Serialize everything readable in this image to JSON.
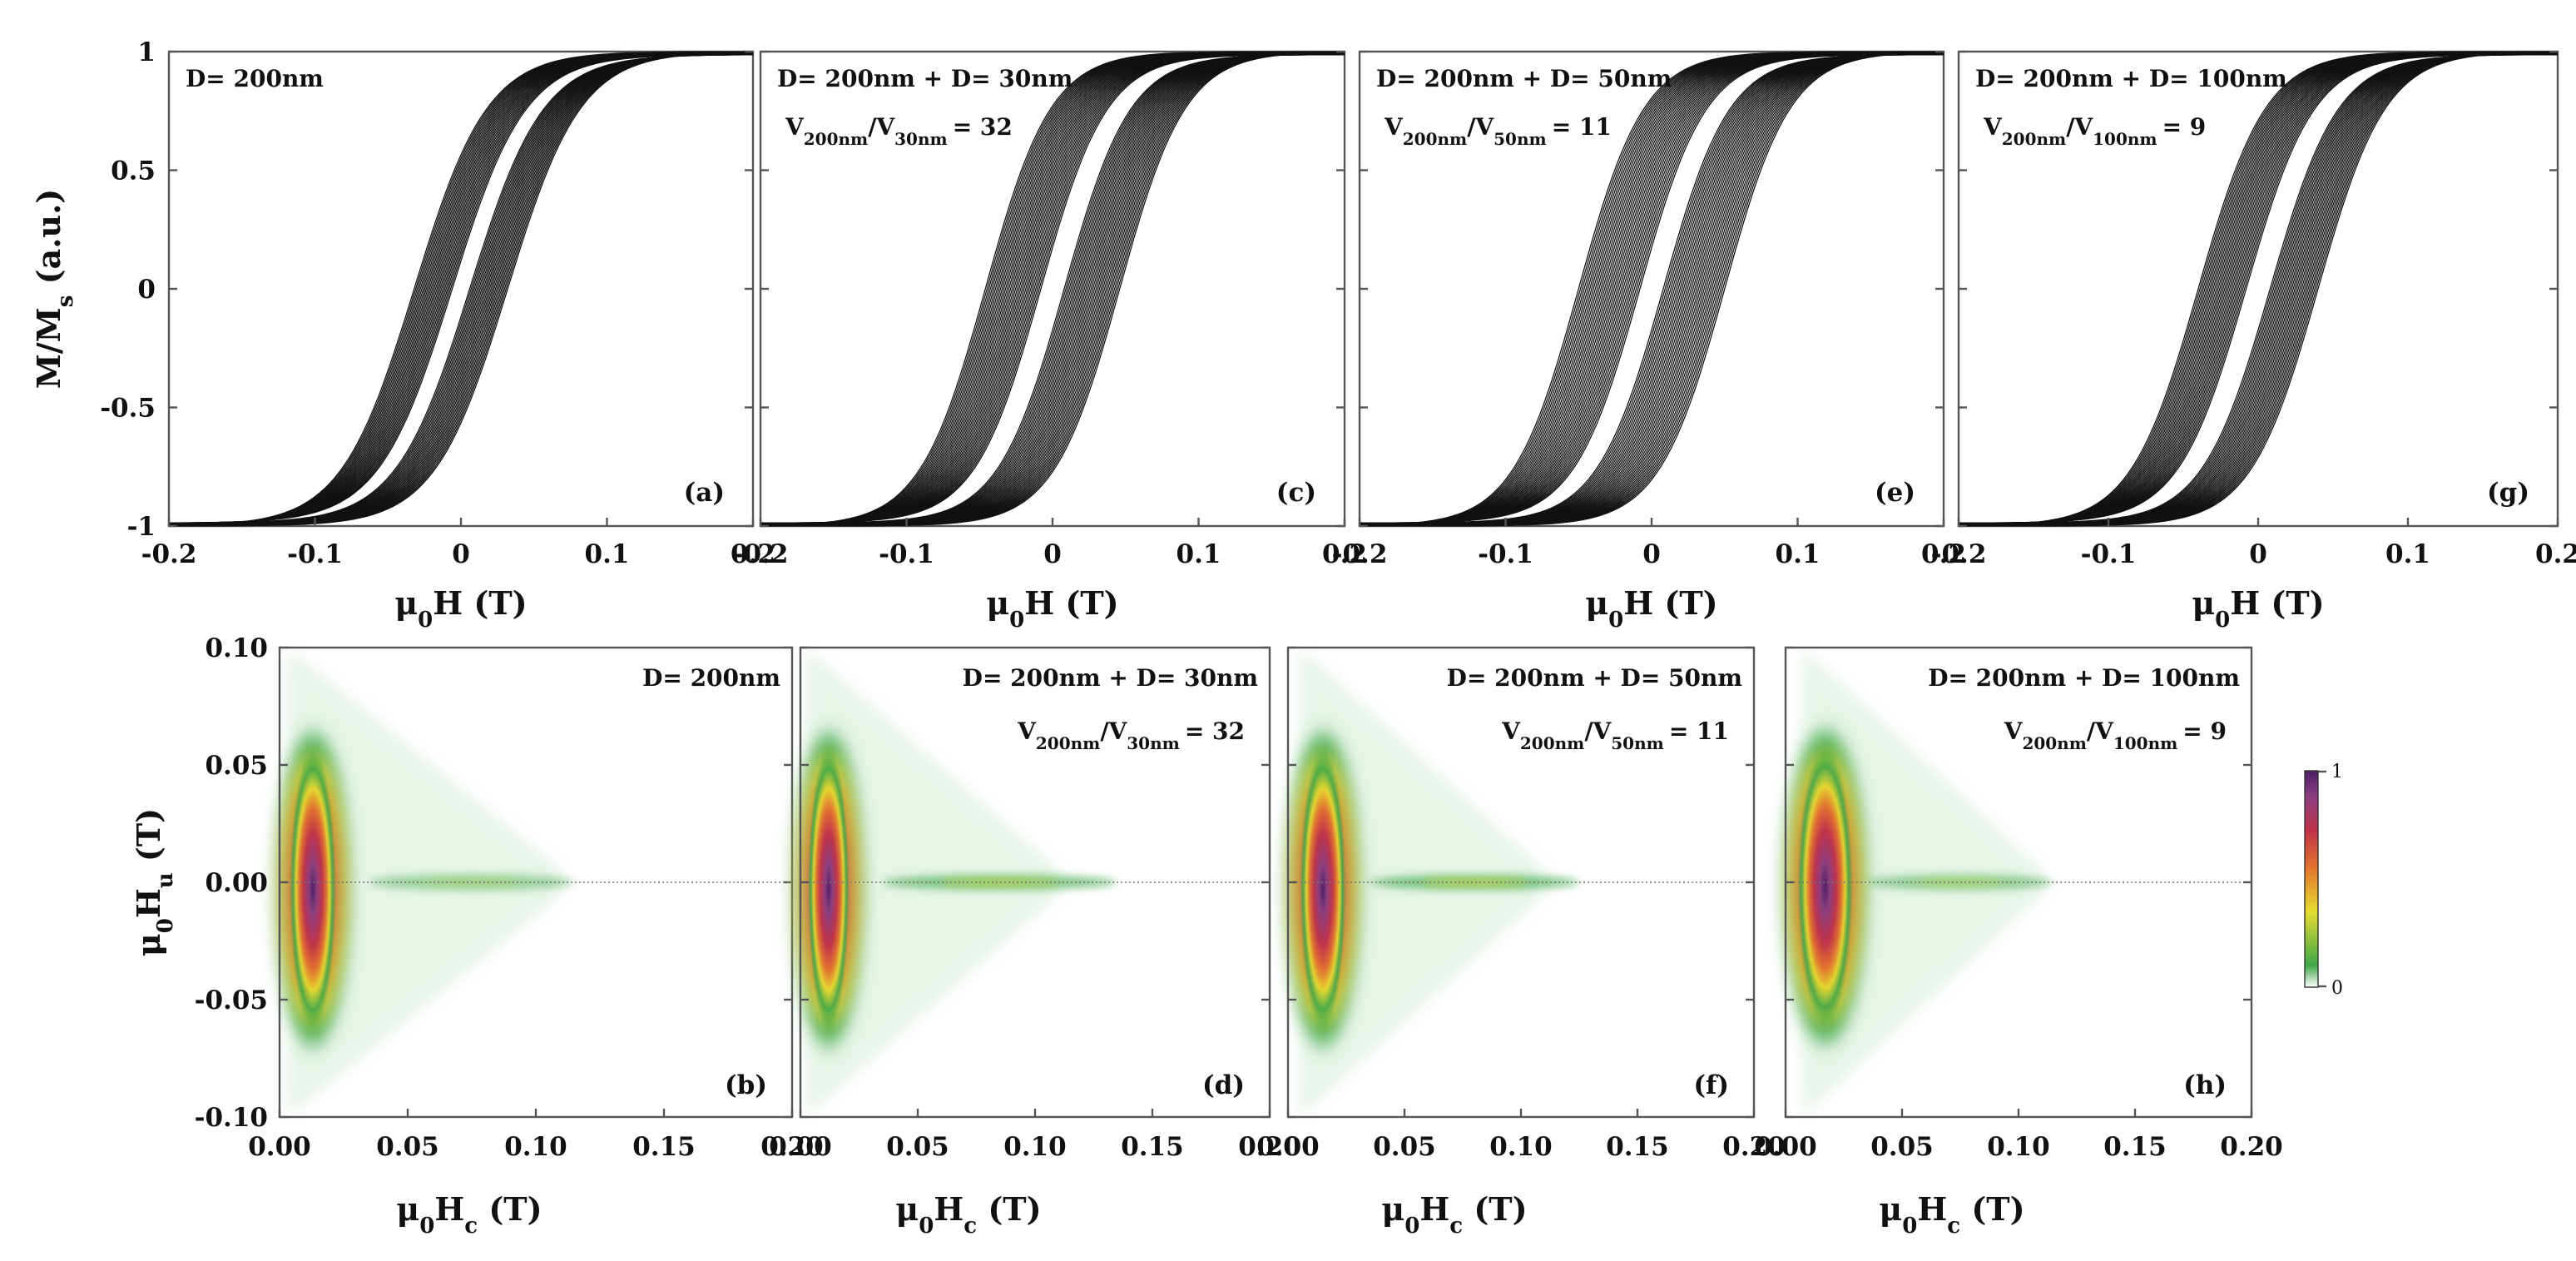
{
  "colors": {
    "heat_low": "#41a84a",
    "heat_mid_low": "#e5dc30",
    "heat_mid": "#e2752f",
    "heat_mid_high": "#c0334a",
    "heat_high": "#8c3f7f",
    "heat_max": "#4a1f64",
    "line": "#111111"
  },
  "chart_data": [
    {
      "type": "line",
      "panel": "(a)",
      "label_main": "D= 200nm",
      "ratio_text": null,
      "xlim": [
        -0.2,
        0.2
      ],
      "ylim": [
        -1,
        1
      ],
      "xticks": [
        "-0.2",
        "-0.1",
        "0",
        "0.1",
        "0.2"
      ],
      "yticks": [
        "1",
        "0.5",
        "0",
        "-0.5",
        "-1"
      ],
      "xlabel": {
        "sym": "μ",
        "sub": "0",
        "rest": "H (T)"
      },
      "ylabel": {
        "pre": "M/M",
        "sub": "s",
        "rest": " (a.u.)"
      },
      "curve_family": {
        "n": 26,
        "hc_min": 0.006,
        "hc_max": 0.032,
        "slope": 0.05
      }
    },
    {
      "type": "line",
      "panel": "(c)",
      "label_main": "D= 200nm + D= 30nm",
      "ratio_text": {
        "a": "V",
        "a_sub": "200nm",
        "b": "/V",
        "b_sub": "30nm",
        "c": "= 32"
      },
      "xlim": [
        -0.2,
        0.2
      ],
      "ylim": [
        -1,
        1
      ],
      "xticks": [
        "-0.2",
        "-0.1",
        "0",
        "0.1",
        "0.2"
      ],
      "yticks": [],
      "xlabel": {
        "sym": "μ",
        "sub": "0",
        "rest": "H (T)"
      },
      "curve_family": {
        "n": 34,
        "hc_min": 0.008,
        "hc_max": 0.046,
        "slope": 0.045
      }
    },
    {
      "type": "line",
      "panel": "(e)",
      "label_main": "D= 200nm + D= 50nm",
      "ratio_text": {
        "a": "V",
        "a_sub": "200nm",
        "b": "/V",
        "b_sub": "50nm",
        "c": "= 11"
      },
      "xlim": [
        -0.2,
        0.2
      ],
      "ylim": [
        -1,
        1
      ],
      "xticks": [
        "-0.2",
        "-0.1",
        "0",
        "0.1",
        "0.2"
      ],
      "yticks": [],
      "xlabel": {
        "sym": "μ",
        "sub": "0",
        "rest": "H (T)"
      },
      "curve_family": {
        "n": 34,
        "hc_min": 0.008,
        "hc_max": 0.05,
        "slope": 0.045
      }
    },
    {
      "type": "line",
      "panel": "(g)",
      "label_main": "D= 200nm + D= 100nm",
      "ratio_text": {
        "a": "V",
        "a_sub": "200nm",
        "b": "/V",
        "b_sub": "100nm",
        "c": "= 9"
      },
      "xlim": [
        -0.2,
        0.2
      ],
      "ylim": [
        -1,
        1
      ],
      "xticks": [
        "-0.2",
        "-0.1",
        "0",
        "0.1",
        "0.2"
      ],
      "yticks": [],
      "xlabel": {
        "sym": "μ",
        "sub": "0",
        "rest": "H (T)"
      },
      "curve_family": {
        "n": 30,
        "hc_min": 0.008,
        "hc_max": 0.04,
        "slope": 0.045
      }
    },
    {
      "type": "heatmap",
      "panel": "(b)",
      "label_main": "D= 200nm",
      "ratio_text": null,
      "xlim": [
        0,
        0.2
      ],
      "ylim": [
        -0.1,
        0.1
      ],
      "xticks": [
        "0.00",
        "0.05",
        "0.10",
        "0.15",
        "0.20"
      ],
      "yticks": [
        "0.10",
        "0.05",
        "0.00",
        "-0.05",
        "-0.10"
      ],
      "xlabel": {
        "sym": "μ",
        "sub": "0",
        "rest": "H",
        "sub2": "c",
        "rest2": " (T)"
      },
      "ylabel": {
        "sym": "μ",
        "sub": "0",
        "rest": "H",
        "sub2": "u",
        "rest2": " (T)"
      },
      "main_peak": {
        "hc": 0.013,
        "hu": -0.003,
        "hc_width": 0.011,
        "hu_height": 0.066
      },
      "tail": {
        "hc_start": 0.035,
        "hc_end": 0.115,
        "intensity": 0.28
      }
    },
    {
      "type": "heatmap",
      "panel": "(d)",
      "label_main": "D= 200nm + D= 30nm",
      "ratio_text": {
        "a": "V",
        "a_sub": "200nm",
        "b": "/V",
        "b_sub": "30nm",
        "c": "= 32"
      },
      "xlim": [
        0,
        0.2
      ],
      "ylim": [
        -0.1,
        0.1
      ],
      "xticks": [
        "0.00",
        "0.05",
        "0.10",
        "0.15",
        "0.20"
      ],
      "yticks": [],
      "xlabel": {
        "sym": "μ",
        "sub": "0",
        "rest": "H",
        "sub2": "c",
        "rest2": " (T)"
      },
      "main_peak": {
        "hc": 0.012,
        "hu": -0.003,
        "hc_width": 0.011,
        "hu_height": 0.066
      },
      "tail": {
        "hc_start": 0.035,
        "hc_end": 0.135,
        "intensity": 0.55
      }
    },
    {
      "type": "heatmap",
      "panel": "(f)",
      "label_main": "D= 200nm + D= 50nm",
      "ratio_text": {
        "a": "V",
        "a_sub": "200nm",
        "b": "/V",
        "b_sub": "50nm",
        "c": "= 11"
      },
      "xlim": [
        0,
        0.2
      ],
      "ylim": [
        -0.1,
        0.1
      ],
      "xticks": [
        "0.00",
        "0.05",
        "0.10",
        "0.15",
        "0.20"
      ],
      "yticks": [],
      "xlabel": {
        "sym": "μ",
        "sub": "0",
        "rest": "H",
        "sub2": "c",
        "rest2": " (T)"
      },
      "main_peak": {
        "hc": 0.015,
        "hu": -0.003,
        "hc_width": 0.012,
        "hu_height": 0.066
      },
      "tail": {
        "hc_start": 0.035,
        "hc_end": 0.125,
        "intensity": 0.6
      }
    },
    {
      "type": "heatmap",
      "panel": "(h)",
      "label_main": "D= 200nm + D= 100nm",
      "ratio_text": {
        "a": "V",
        "a_sub": "200nm",
        "b": "/V",
        "b_sub": "100nm",
        "c": "= 9"
      },
      "xlim": [
        0,
        0.2
      ],
      "ylim": [
        -0.1,
        0.1
      ],
      "xticks": [
        "0.00",
        "0.05",
        "0.10",
        "0.15",
        "0.20"
      ],
      "yticks": [],
      "xlabel": {
        "sym": "μ",
        "sub": "0",
        "rest": "H",
        "sub2": "c",
        "rest2": " (T)"
      },
      "main_peak": {
        "hc": 0.017,
        "hu": -0.002,
        "hc_width": 0.014,
        "hu_height": 0.066
      },
      "tail": {
        "hc_start": 0.035,
        "hc_end": 0.115,
        "intensity": 0.35
      }
    },
    {
      "type": "colorbar",
      "range": [
        0,
        1
      ],
      "ticks": [
        "1",
        "0"
      ]
    }
  ]
}
